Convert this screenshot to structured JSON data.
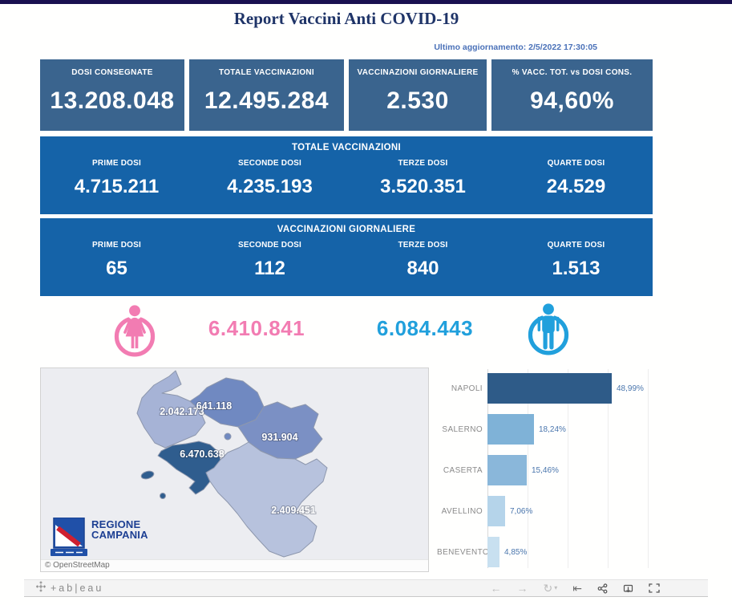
{
  "header": {
    "title": "Report Vaccini Anti COVID-19",
    "last_update": "Ultimo aggiornamento: 2/5/2022 17:30:05"
  },
  "kpis": [
    {
      "label": "DOSI  CONSEGNATE",
      "value": "13.208.048"
    },
    {
      "label": "TOTALE VACCINAZIONI",
      "value": "12.495.284"
    },
    {
      "label": "VACCINAZIONI GIORNALIERE",
      "value": "2.530"
    },
    {
      "label": "% VACC. TOT. vs DOSI CONS.",
      "value": "94,60%"
    }
  ],
  "totale": {
    "title": "TOTALE VACCINAZIONI",
    "columns": [
      {
        "label": "PRIME DOSI",
        "value": "4.715.211"
      },
      {
        "label": "SECONDE DOSI",
        "value": "4.235.193"
      },
      {
        "label": "TERZE DOSI",
        "value": "3.520.351"
      },
      {
        "label": "QUARTE DOSI",
        "value": "24.529"
      }
    ]
  },
  "giornaliere": {
    "title": "VACCINAZIONI GIORNALIERE",
    "columns": [
      {
        "label": "PRIME DOSI",
        "value": "65"
      },
      {
        "label": "SECONDE DOSI",
        "value": "112"
      },
      {
        "label": "TERZE DOSI",
        "value": "840"
      },
      {
        "label": "QUARTE DOSI",
        "value": "1.513"
      }
    ]
  },
  "gender": {
    "female_value": "6.410.841",
    "male_value": "6.084.443",
    "female_color": "#f27cb2",
    "male_color": "#21a0dc"
  },
  "map": {
    "attribution": "© OpenStreetMap",
    "logo": {
      "line1": "REGIONE",
      "line2": "CAMPANIA"
    },
    "provinces": [
      {
        "name": "Caserta",
        "value": "2.042.173",
        "color": "#a6b3d6"
      },
      {
        "name": "Benevento",
        "value": "641.118",
        "color": "#7089c1"
      },
      {
        "name": "Avellino",
        "value": "931.904",
        "color": "#7b90c4"
      },
      {
        "name": "Napoli",
        "value": "6.470.638",
        "color": "#2f5d8e"
      },
      {
        "name": "Salerno",
        "value": "2.409.451",
        "color": "#b7c2dd"
      }
    ]
  },
  "chart_data": {
    "type": "bar",
    "orientation": "horizontal",
    "categories": [
      "NAPOLI",
      "SALERNO",
      "CASERTA",
      "AVELLINO",
      "BENEVENTO"
    ],
    "values": [
      48.99,
      18.24,
      15.46,
      7.06,
      4.85
    ],
    "value_labels": [
      "48,99%",
      "18,24%",
      "15,46%",
      "7,06%",
      "4,85%"
    ],
    "colors": [
      "#2e5b88",
      "#7fb2d7",
      "#8ab7da",
      "#b5d4ea",
      "#c8e0f0"
    ],
    "title": "",
    "xlabel": "",
    "ylabel": "",
    "xlim": [
      0,
      64
    ],
    "grid": true,
    "legend": false
  },
  "toolbar": {
    "brand": "+ab|eau"
  }
}
